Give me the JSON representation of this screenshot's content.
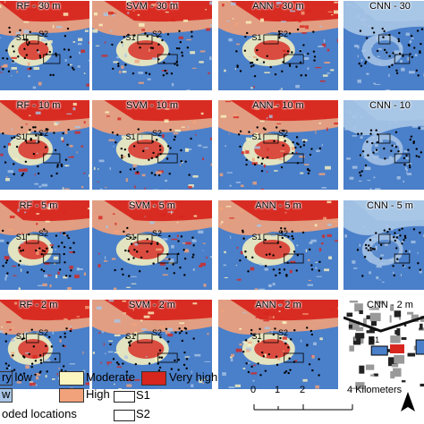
{
  "panels": [
    {
      "title": "RF - 30 m",
      "style": "smooth"
    },
    {
      "title": "SVM - 30 m",
      "style": "smooth"
    },
    {
      "title": "ANN - 30 m",
      "style": "smooth"
    },
    {
      "title": "CNN - 30",
      "style": "cnn30"
    },
    {
      "title": "RF - 10 m",
      "style": "smooth"
    },
    {
      "title": "SVM - 10 m",
      "style": "smooth"
    },
    {
      "title": "ANN - 10 m",
      "style": "smooth"
    },
    {
      "title": "CNN - 10",
      "style": "cnn"
    },
    {
      "title": "RF - 5 m",
      "style": "smooth"
    },
    {
      "title": "SVM - 5 m",
      "style": "smooth"
    },
    {
      "title": "ANN - 5 m",
      "style": "smooth"
    },
    {
      "title": "CNN - 5 m",
      "style": "cnn"
    },
    {
      "title": "RF - 2 m",
      "style": "smooth"
    },
    {
      "title": "SVM - 2 m",
      "style": "smooth"
    },
    {
      "title": "ANN - 2 m",
      "style": "smooth"
    },
    {
      "title": "CNN - 2 m",
      "style": "cnn2"
    }
  ],
  "site_labels": {
    "s1": "S1",
    "s2": "S2"
  },
  "legend": {
    "very_low": "ry low",
    "low": "w",
    "moderate": "Moderate",
    "high": "High",
    "very_high": "Very high",
    "s1": "S1",
    "s2": "S2",
    "flooded": "oded locations"
  },
  "colors": {
    "very_low": "#4a7fc9",
    "low": "#a9c6e6",
    "moderate": "#fbf5c0",
    "high": "#f2a27a",
    "very_high": "#d7261e"
  },
  "scale": {
    "ticks": [
      "0",
      "1",
      "2",
      "4 Kilometers"
    ]
  }
}
